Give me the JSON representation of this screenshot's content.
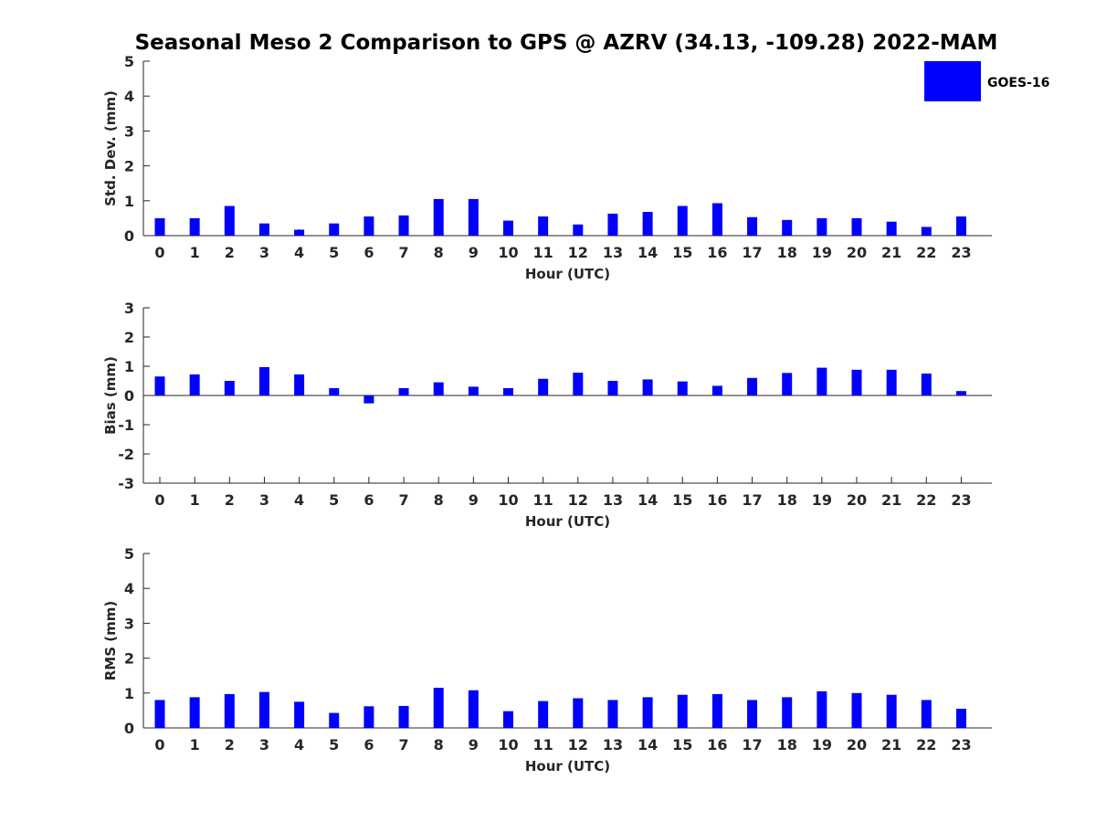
{
  "chart_data": [
    {
      "type": "bar",
      "title": "Seasonal Meso 2 Comparison to GPS @ AZRV (34.13, -109.28) 2022-MAM",
      "xlabel": "Hour (UTC)",
      "ylabel": "Std. Dev. (mm)",
      "ylim": [
        0,
        5
      ],
      "yticks": [
        "0",
        "1",
        "2",
        "3",
        "4",
        "5"
      ],
      "categories": [
        "0",
        "1",
        "2",
        "3",
        "4",
        "5",
        "6",
        "7",
        "8",
        "9",
        "10",
        "11",
        "12",
        "13",
        "14",
        "15",
        "16",
        "17",
        "18",
        "19",
        "20",
        "21",
        "22",
        "23"
      ],
      "series": [
        {
          "name": "GOES-16",
          "color": "#0000ff",
          "values": [
            0.5,
            0.5,
            0.85,
            0.35,
            0.17,
            0.35,
            0.55,
            0.58,
            1.05,
            1.05,
            0.43,
            0.55,
            0.32,
            0.63,
            0.68,
            0.85,
            0.93,
            0.53,
            0.45,
            0.5,
            0.5,
            0.4,
            0.25,
            0.55
          ]
        }
      ],
      "legend": {
        "entries": [
          "GOES-16"
        ],
        "position": "top-right"
      }
    },
    {
      "type": "bar",
      "title": "",
      "xlabel": "Hour (UTC)",
      "ylabel": "Bias (mm)",
      "ylim": [
        -3,
        3
      ],
      "yticks": [
        "-3",
        "-2",
        "-1",
        "0",
        "1",
        "2",
        "3"
      ],
      "categories": [
        "0",
        "1",
        "2",
        "3",
        "4",
        "5",
        "6",
        "7",
        "8",
        "9",
        "10",
        "11",
        "12",
        "13",
        "14",
        "15",
        "16",
        "17",
        "18",
        "19",
        "20",
        "21",
        "22",
        "23"
      ],
      "series": [
        {
          "name": "GOES-16",
          "color": "#0000ff",
          "values": [
            0.65,
            0.72,
            0.5,
            0.97,
            0.72,
            0.25,
            -0.27,
            0.25,
            0.45,
            0.3,
            0.25,
            0.57,
            0.78,
            0.5,
            0.55,
            0.48,
            0.33,
            0.6,
            0.77,
            0.95,
            0.88,
            0.88,
            0.75,
            0.15
          ]
        }
      ]
    },
    {
      "type": "bar",
      "title": "",
      "xlabel": "Hour (UTC)",
      "ylabel": "RMS (mm)",
      "ylim": [
        0,
        5
      ],
      "yticks": [
        "0",
        "1",
        "2",
        "3",
        "4",
        "5"
      ],
      "categories": [
        "0",
        "1",
        "2",
        "3",
        "4",
        "5",
        "6",
        "7",
        "8",
        "9",
        "10",
        "11",
        "12",
        "13",
        "14",
        "15",
        "16",
        "17",
        "18",
        "19",
        "20",
        "21",
        "22",
        "23"
      ],
      "series": [
        {
          "name": "GOES-16",
          "color": "#0000ff",
          "values": [
            0.8,
            0.88,
            0.97,
            1.03,
            0.75,
            0.43,
            0.62,
            0.63,
            1.15,
            1.08,
            0.48,
            0.77,
            0.85,
            0.8,
            0.88,
            0.95,
            0.97,
            0.8,
            0.88,
            1.05,
            1.0,
            0.95,
            0.8,
            0.55
          ]
        }
      ]
    }
  ]
}
